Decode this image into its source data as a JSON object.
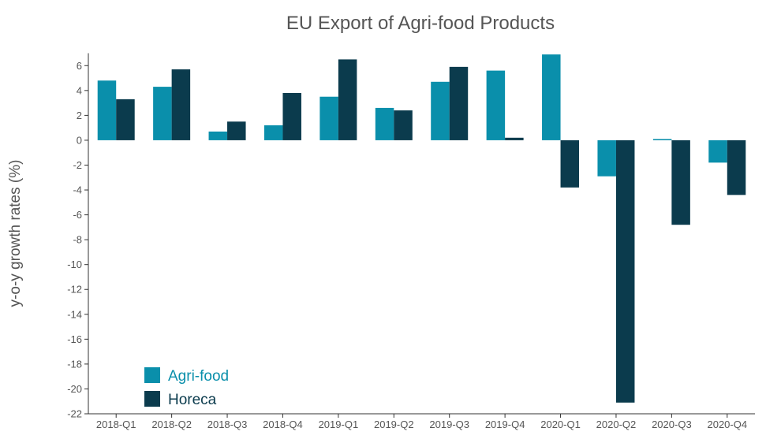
{
  "chart_data": {
    "type": "bar",
    "title": "EU Export of Agri-food Products",
    "xlabel": "",
    "ylabel": "y-o-y growth rates (%)",
    "categories": [
      "2018-Q1",
      "2018-Q2",
      "2018-Q3",
      "2018-Q4",
      "2019-Q1",
      "2019-Q2",
      "2019-Q3",
      "2019-Q4",
      "2020-Q1",
      "2020-Q2",
      "2020-Q3",
      "2020-Q4"
    ],
    "series": [
      {
        "name": "Agri-food",
        "color": "#0a8fab",
        "values": [
          4.8,
          4.3,
          0.7,
          1.2,
          3.5,
          2.6,
          4.7,
          5.6,
          6.9,
          -2.9,
          0.1,
          -1.8
        ]
      },
      {
        "name": "Horeca",
        "color": "#0b3b4d",
        "values": [
          3.3,
          5.7,
          1.5,
          3.8,
          6.5,
          2.4,
          5.9,
          0.2,
          -3.8,
          -21.1,
          -6.8,
          -4.4
        ]
      }
    ],
    "ylim": [
      -22,
      7
    ],
    "yticks": [
      6,
      4,
      2,
      0,
      -2,
      -4,
      -6,
      -8,
      -10,
      -12,
      -14,
      -16,
      -18,
      -20,
      -22
    ],
    "grid": false,
    "legend": "bottom-left"
  }
}
